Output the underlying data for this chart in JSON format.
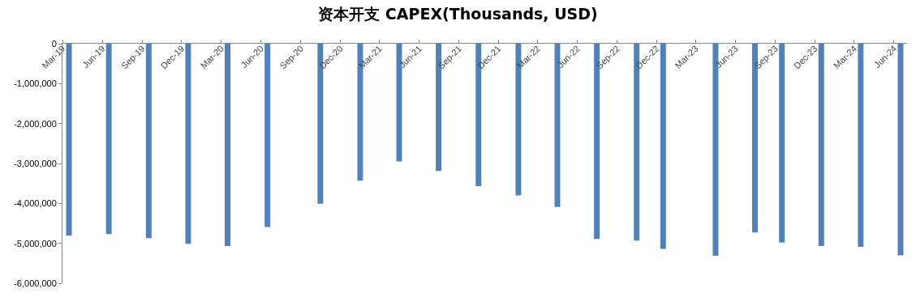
{
  "chart_data": {
    "type": "bar",
    "title": "资本开支 CAPEX(Thousands, USD)",
    "x": [
      "2019-03-16",
      "2019-06-16",
      "2019-09-16",
      "2019-12-16",
      "2020-03-16",
      "2020-06-16",
      "2020-10-16",
      "2021-01-16",
      "2021-04-16",
      "2021-07-16",
      "2021-10-16",
      "2022-01-16",
      "2022-04-16",
      "2022-07-16",
      "2022-10-16",
      "2022-12-16",
      "2023-04-16",
      "2023-07-16",
      "2023-09-16",
      "2023-12-16",
      "2024-03-16",
      "2024-06-16"
    ],
    "values": [
      -4810000,
      -4770000,
      -4870000,
      -5010000,
      -5070000,
      -4590000,
      -4010000,
      -3430000,
      -2950000,
      -3190000,
      -3570000,
      -3800000,
      -4090000,
      -4890000,
      -4930000,
      -5140000,
      -5310000,
      -4730000,
      -4980000,
      -5070000,
      -5090000,
      -5300000
    ],
    "color": "#4f81bd",
    "xlim": [
      "2019-03",
      "2024-07"
    ],
    "xticks": [
      {
        "value": "2019-03",
        "label": "Mar-19"
      },
      {
        "value": "2019-06",
        "label": "Jun-19"
      },
      {
        "value": "2019-09",
        "label": "Sep-19"
      },
      {
        "value": "2019-12",
        "label": "Dec-19"
      },
      {
        "value": "2020-03",
        "label": "Mar-20"
      },
      {
        "value": "2020-06",
        "label": "Jun-20"
      },
      {
        "value": "2020-09",
        "label": "Sep-20"
      },
      {
        "value": "2020-12",
        "label": "Dec-20"
      },
      {
        "value": "2021-03",
        "label": "Mar-21"
      },
      {
        "value": "2021-06",
        "label": "Jun-21"
      },
      {
        "value": "2021-09",
        "label": "Sep-21"
      },
      {
        "value": "2021-12",
        "label": "Dec-21"
      },
      {
        "value": "2022-03",
        "label": "Mar-22"
      },
      {
        "value": "2022-06",
        "label": "Jun-22"
      },
      {
        "value": "2022-09",
        "label": "Sep-22"
      },
      {
        "value": "2022-12",
        "label": "Dec-22"
      },
      {
        "value": "2023-03",
        "label": "Mar-23"
      },
      {
        "value": "2023-06",
        "label": "Jun-23"
      },
      {
        "value": "2023-09",
        "label": "Sep-23"
      },
      {
        "value": "2023-12",
        "label": "Dec-23"
      },
      {
        "value": "2024-03",
        "label": "Mar-24"
      },
      {
        "value": "2024-06",
        "label": "Jun-24"
      }
    ],
    "ylim": [
      -6000000,
      0
    ],
    "yticks": [
      {
        "value": -6000000,
        "label": "-6,000,000"
      },
      {
        "value": -5000000,
        "label": "-5,000,000"
      },
      {
        "value": -4000000,
        "label": "-4,000,000"
      },
      {
        "value": -3000000,
        "label": "-3,000,000"
      },
      {
        "value": -2000000,
        "label": "-2,000,000"
      },
      {
        "value": -1000000,
        "label": "-1,000,000"
      },
      {
        "value": 0,
        "label": "0"
      }
    ],
    "orientation": "vertical"
  }
}
